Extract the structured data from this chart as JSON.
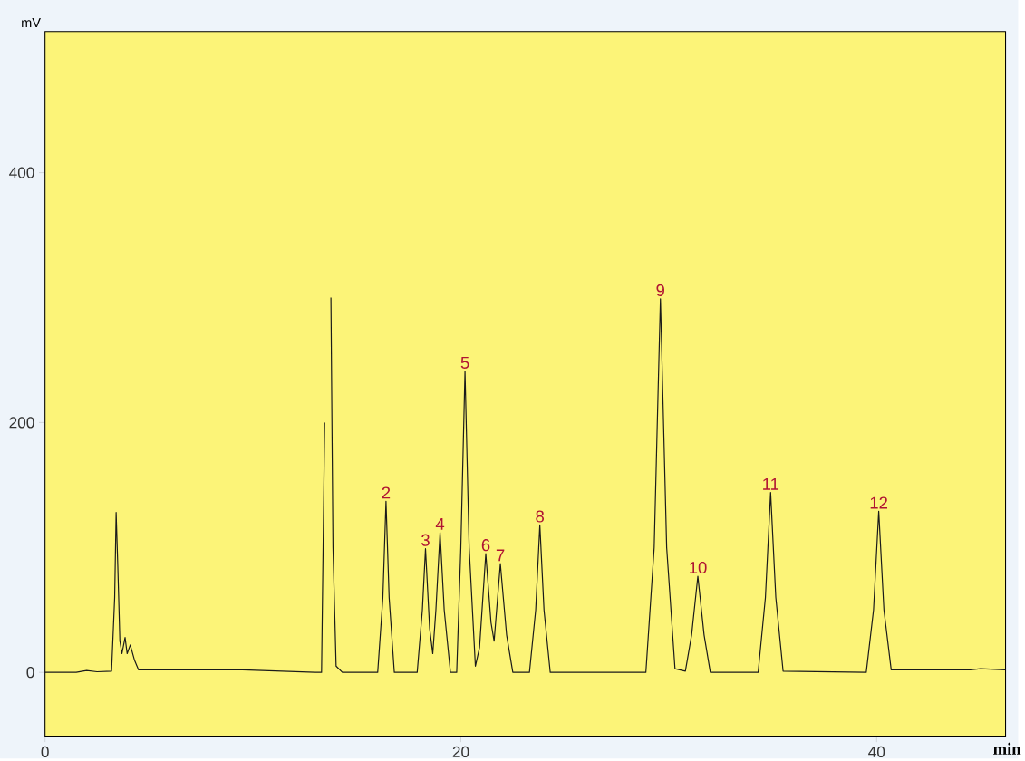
{
  "chart_data": {
    "type": "line",
    "xlabel": "min",
    "ylabel": "mV",
    "x": [
      0,
      1.5,
      2.0,
      2.5,
      3.2,
      3.35,
      3.42,
      3.5,
      3.6,
      3.7,
      3.85,
      3.95,
      4.1,
      4.3,
      4.5,
      6.3,
      9.5,
      13.0,
      13.3,
      13.45,
      13.55,
      13.65,
      13.75,
      13.85,
      14.0,
      14.3,
      16.0,
      16.25,
      16.4,
      16.55,
      16.8,
      17.9,
      18.15,
      18.3,
      18.5,
      18.65,
      18.8,
      19.0,
      19.2,
      19.5,
      19.8,
      20.0,
      20.2,
      20.4,
      20.7,
      20.9,
      21.2,
      21.45,
      21.6,
      21.9,
      22.2,
      22.5,
      23.3,
      23.6,
      23.8,
      24.0,
      24.3,
      28.9,
      29.3,
      29.6,
      29.9,
      30.3,
      30.8,
      31.1,
      31.4,
      31.7,
      32.0,
      34.3,
      34.65,
      34.9,
      35.15,
      35.5,
      39.5,
      39.85,
      40.1,
      40.35,
      40.7,
      44.5,
      45.0,
      46.2
    ],
    "series": [
      {
        "color": "#1a1a1a",
        "values": [
          0,
          0,
          1.5,
          0.5,
          1,
          60,
          128,
          85,
          25,
          15,
          28,
          15,
          22,
          10,
          2,
          2,
          2,
          0,
          0,
          200,
          null,
          null,
          300,
          100,
          5,
          0,
          0,
          60,
          137,
          60,
          0,
          0,
          50,
          99,
          35,
          15,
          50,
          112,
          50,
          0,
          0,
          100,
          241,
          100,
          5,
          20,
          95,
          40,
          25,
          87,
          30,
          0,
          0,
          50,
          118,
          50,
          0,
          0,
          100,
          299,
          100,
          3,
          1,
          30,
          77,
          30,
          0,
          0,
          60,
          144,
          60,
          1,
          0,
          50,
          129,
          50,
          2,
          2,
          3,
          2
        ]
      }
    ],
    "xlim": [
      0,
      46.2
    ],
    "ylim": [
      -51,
      513
    ],
    "xticks": [
      0,
      20,
      40
    ],
    "yticks": [
      0,
      200,
      400
    ],
    "marker": "none",
    "line_style": "solid",
    "annotations": [
      {
        "text": "2",
        "x": 16.4,
        "y": 137
      },
      {
        "text": "3",
        "x": 18.3,
        "y": 99
      },
      {
        "text": "4",
        "x": 19.0,
        "y": 112
      },
      {
        "text": "5",
        "x": 20.2,
        "y": 241
      },
      {
        "text": "6",
        "x": 21.2,
        "y": 95
      },
      {
        "text": "7",
        "x": 21.9,
        "y": 87
      },
      {
        "text": "8",
        "x": 23.8,
        "y": 118
      },
      {
        "text": "9",
        "x": 29.6,
        "y": 299
      },
      {
        "text": "10",
        "x": 31.4,
        "y": 77
      },
      {
        "text": "11",
        "x": 34.9,
        "y": 144
      },
      {
        "text": "12",
        "x": 40.1,
        "y": 129
      }
    ]
  }
}
